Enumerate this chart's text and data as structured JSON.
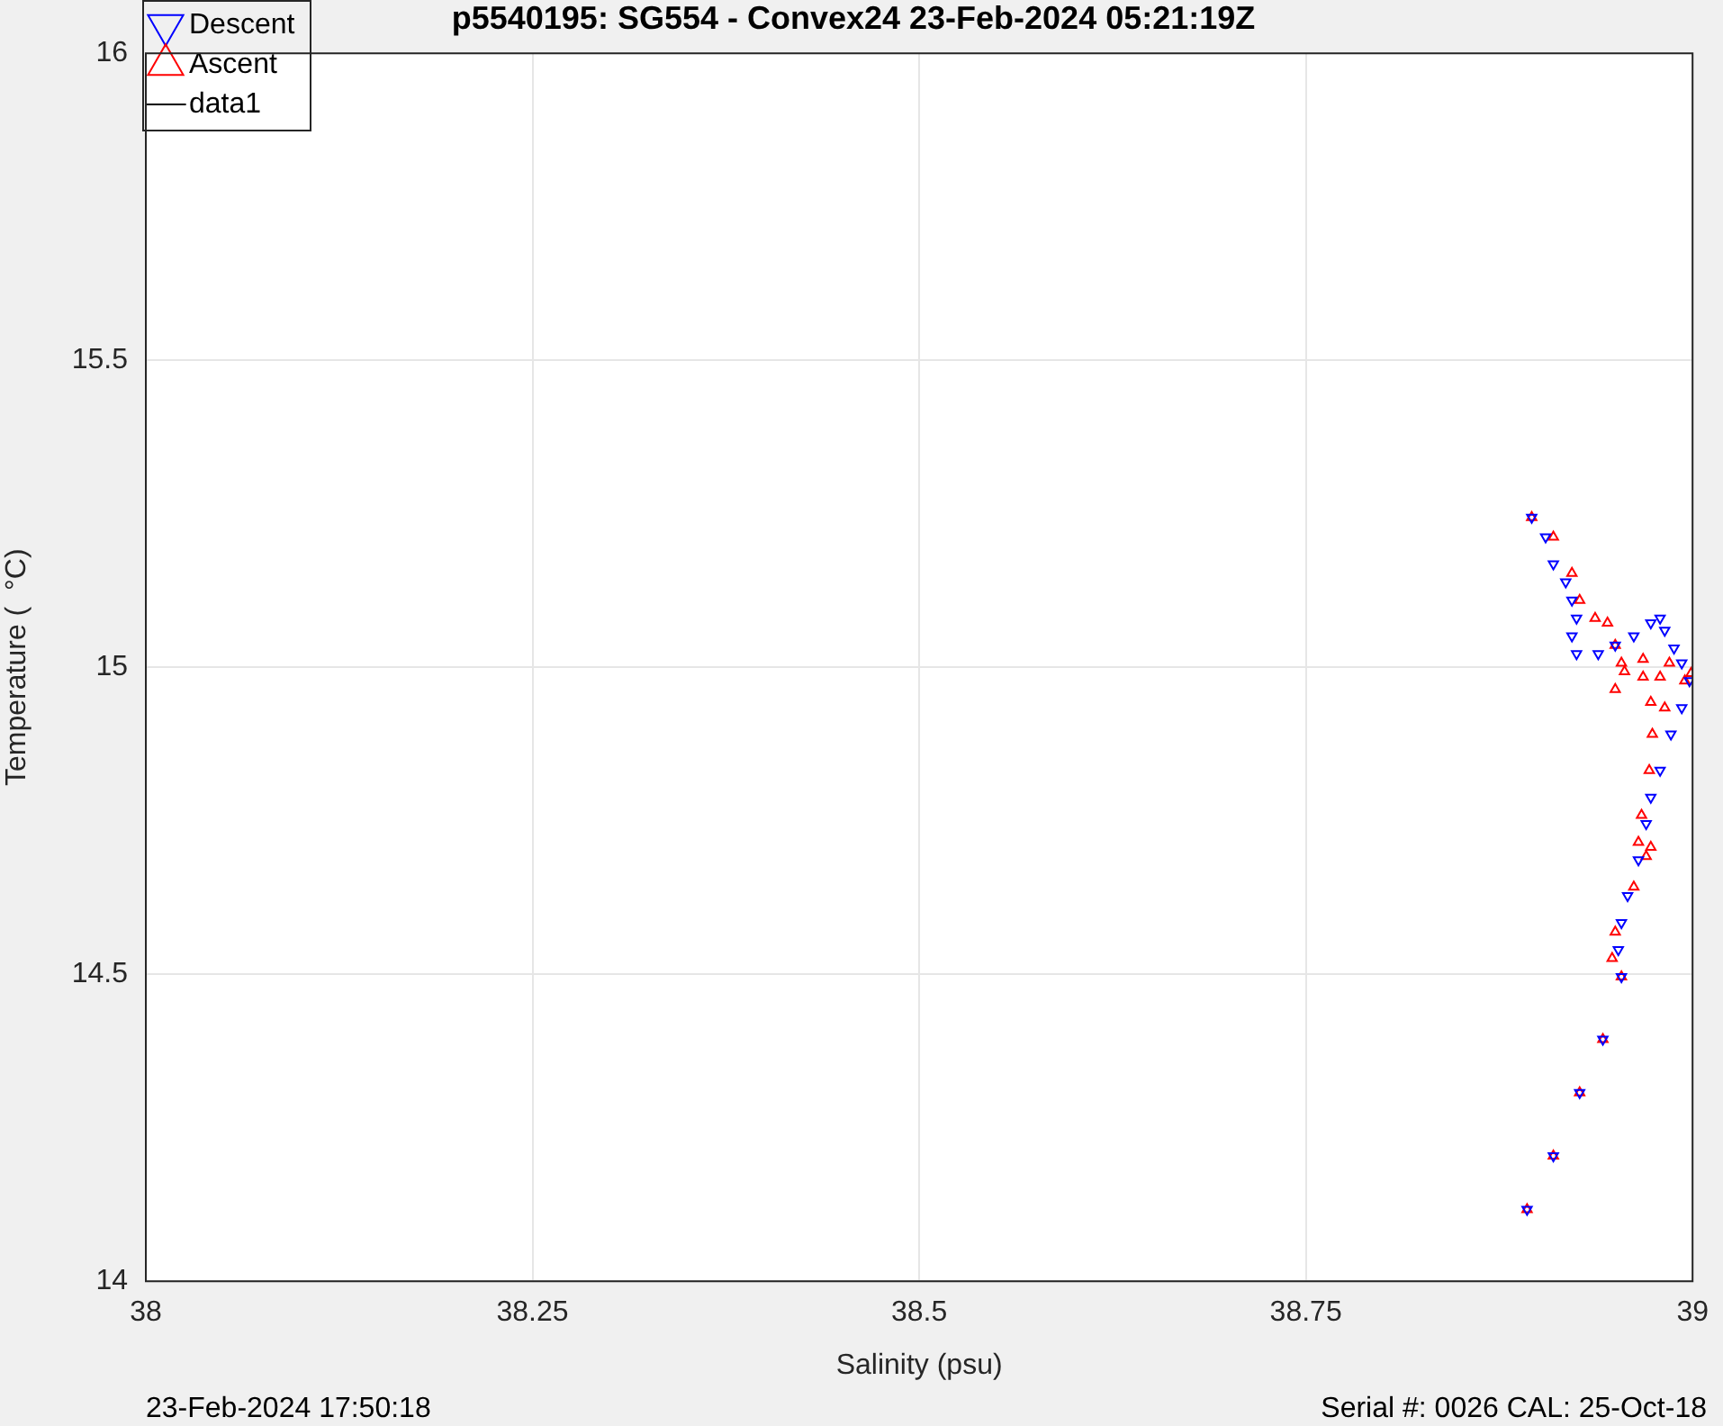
{
  "chart_data": {
    "type": "scatter",
    "title": "p5540195: SG554 - Convex24 23-Feb-2024 05:21:19Z",
    "xlabel": "Salinity (psu)",
    "ylabel": "Temperature (  °C)",
    "xlim": [
      38,
      39
    ],
    "xticks": [
      38,
      38.25,
      38.5,
      38.75,
      39
    ],
    "ylim": [
      14,
      16
    ],
    "yticks": [
      14,
      14.5,
      15,
      15.5,
      16
    ],
    "grid": true,
    "legend": "top left",
    "marker": "triangle",
    "annotations": [
      "23-Feb-2024 17:50:18",
      "Serial #: 0026 CAL: 25-Oct-18"
    ],
    "series": [
      {
        "name": "Descent",
        "color": "#0000ff",
        "x": [
          38.896,
          38.905,
          38.91,
          38.918,
          38.922,
          38.925,
          38.922,
          38.925,
          38.939,
          38.95,
          38.962,
          38.973,
          38.979,
          38.982,
          38.988,
          38.993,
          38.998,
          38.993,
          38.986,
          38.979,
          38.973,
          38.97,
          38.965,
          38.958,
          38.954,
          38.952,
          38.954,
          38.942,
          38.927,
          38.91,
          38.893
        ],
        "values": [
          15.244,
          15.212,
          15.168,
          15.139,
          15.109,
          15.08,
          15.051,
          15.022,
          15.022,
          15.036,
          15.051,
          15.072,
          15.08,
          15.06,
          15.031,
          15.007,
          14.978,
          14.934,
          14.891,
          14.832,
          14.788,
          14.745,
          14.686,
          14.628,
          14.584,
          14.54,
          14.496,
          14.394,
          14.307,
          14.204,
          14.117
        ]
      },
      {
        "name": "Ascent",
        "color": "#ff0000",
        "x": [
          38.893,
          38.91,
          38.927,
          38.942,
          38.954,
          38.948,
          38.95,
          38.962,
          38.97,
          38.973,
          38.965,
          38.967,
          38.972,
          38.974,
          38.982,
          38.995,
          38.999,
          38.973,
          38.979,
          38.985,
          38.968,
          38.95,
          38.956,
          38.968,
          38.954,
          38.95,
          38.945,
          38.937,
          38.927,
          38.922,
          38.91,
          38.896
        ],
        "values": [
          14.117,
          14.204,
          14.307,
          14.394,
          14.496,
          14.526,
          14.569,
          14.642,
          14.692,
          14.707,
          14.715,
          14.759,
          14.832,
          14.891,
          14.934,
          14.978,
          14.99,
          14.943,
          14.984,
          15.007,
          14.984,
          14.964,
          14.993,
          15.013,
          15.007,
          15.036,
          15.072,
          15.08,
          15.109,
          15.153,
          15.212,
          15.244
        ]
      },
      {
        "name": "data1",
        "type": "line",
        "color": "#000000"
      }
    ]
  }
}
